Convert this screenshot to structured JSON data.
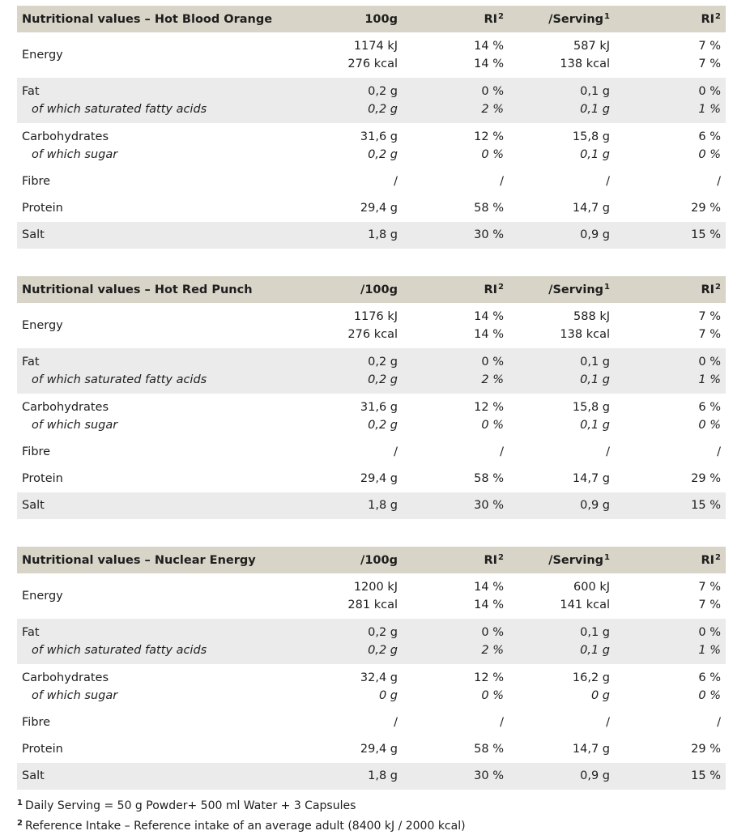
{
  "tables": [
    {
      "header": {
        "title": "Nutritional values – Hot Blood Orange",
        "col_100g": "100g",
        "col_ri": "RI",
        "col_ri_sup": "2",
        "col_serving": "/Serving",
        "col_serving_sup": "1",
        "col_ri2": "RI",
        "col_ri2_sup": "2"
      },
      "energy": {
        "label": "Energy",
        "v1": "1174 kJ",
        "v2": "276 kcal",
        "ri1": "14 %",
        "ri2": "14 %",
        "s1": "587 kJ",
        "s2": "138 kcal",
        "sri1": "7 %",
        "sri2": "7 %"
      },
      "fat": {
        "label": "Fat",
        "sublabel": "of which saturated fatty acids",
        "v1": "0,2 g",
        "v2": "0,2 g",
        "ri1": "0 %",
        "ri2": "2 %",
        "s1": "0,1 g",
        "s2": "0,1 g",
        "sri1": "0 %",
        "sri2": "1 %"
      },
      "carbs": {
        "label": "Carbohydrates",
        "sublabel": "of which sugar",
        "v1": "31,6 g",
        "v2": "0,2 g",
        "ri1": "12 %",
        "ri2": "0 %",
        "s1": "15,8 g",
        "s2": "0,1 g",
        "sri1": "6 %",
        "sri2": "0 %"
      },
      "fibre": {
        "label": "Fibre",
        "v": "/",
        "ri": "/",
        "s": "/",
        "sri": "/"
      },
      "protein": {
        "label": "Protein",
        "v": "29,4 g",
        "ri": "58 %",
        "s": "14,7 g",
        "sri": "29 %"
      },
      "salt": {
        "label": "Salt",
        "v": "1,8 g",
        "ri": "30 %",
        "s": "0,9 g",
        "sri": "15 %"
      }
    },
    {
      "header": {
        "title": "Nutritional values – Hot Red Punch",
        "col_100g": "/100g",
        "col_ri": "RI",
        "col_ri_sup": "2",
        "col_serving": "/Serving",
        "col_serving_sup": "1",
        "col_ri2": "RI",
        "col_ri2_sup": "2"
      },
      "energy": {
        "label": "Energy",
        "v1": "1176 kJ",
        "v2": "276 kcal",
        "ri1": "14 %",
        "ri2": "14 %",
        "s1": "588 kJ",
        "s2": "138 kcal",
        "sri1": "7 %",
        "sri2": "7 %"
      },
      "fat": {
        "label": "Fat",
        "sublabel": "of which saturated fatty acids",
        "v1": "0,2 g",
        "v2": "0,2 g",
        "ri1": "0 %",
        "ri2": "2 %",
        "s1": "0,1 g",
        "s2": "0,1 g",
        "sri1": "0 %",
        "sri2": "1 %"
      },
      "carbs": {
        "label": "Carbohydrates",
        "sublabel": "of which sugar",
        "v1": "31,6 g",
        "v2": "0,2 g",
        "ri1": "12 %",
        "ri2": "0 %",
        "s1": "15,8 g",
        "s2": "0,1 g",
        "sri1": "6 %",
        "sri2": "0 %"
      },
      "fibre": {
        "label": "Fibre",
        "v": "/",
        "ri": "/",
        "s": "/",
        "sri": "/"
      },
      "protein": {
        "label": "Protein",
        "v": "29,4 g",
        "ri": "58 %",
        "s": "14,7 g",
        "sri": "29 %"
      },
      "salt": {
        "label": "Salt",
        "v": "1,8 g",
        "ri": "30 %",
        "s": "0,9 g",
        "sri": "15 %"
      }
    },
    {
      "header": {
        "title": "Nutritional values – Nuclear Energy",
        "col_100g": "/100g",
        "col_ri": "RI",
        "col_ri_sup": "2",
        "col_serving": "/Serving",
        "col_serving_sup": "1",
        "col_ri2": "RI",
        "col_ri2_sup": "2"
      },
      "energy": {
        "label": "Energy",
        "v1": "1200 kJ",
        "v2": "281 kcal",
        "ri1": "14 %",
        "ri2": "14 %",
        "s1": "600 kJ",
        "s2": "141 kcal",
        "sri1": "7 %",
        "sri2": "7 %"
      },
      "fat": {
        "label": "Fat",
        "sublabel": "of which saturated fatty acids",
        "v1": "0,2 g",
        "v2": "0,2 g",
        "ri1": "0 %",
        "ri2": "2 %",
        "s1": "0,1 g",
        "s2": "0,1 g",
        "sri1": "0 %",
        "sri2": "1 %"
      },
      "carbs": {
        "label": "Carbohydrates",
        "sublabel": "of which sugar",
        "v1": "32,4 g",
        "v2": "0 g",
        "ri1": "12 %",
        "ri2": "0 %",
        "s1": "16,2 g",
        "s2": "0 g",
        "sri1": "6 %",
        "sri2": "0 %"
      },
      "fibre": {
        "label": "Fibre",
        "v": "/",
        "ri": "/",
        "s": "/",
        "sri": "/"
      },
      "protein": {
        "label": "Protein",
        "v": "29,4 g",
        "ri": "58 %",
        "s": "14,7 g",
        "sri": "29 %"
      },
      "salt": {
        "label": "Salt",
        "v": "1,8 g",
        "ri": "30 %",
        "s": "0,9 g",
        "sri": "15 %"
      }
    }
  ],
  "footnotes": [
    {
      "mark": "1",
      "text": "Daily Serving = 50 g Powder+ 500 ml Water + 3 Capsules"
    },
    {
      "mark": "2",
      "text": "Reference Intake –  Reference intake of an average adult  (8400 kJ / 2000 kcal)"
    }
  ],
  "colors": {
    "header_bg": "#d8d5c8",
    "row_shade": "#ebebeb",
    "text": "#1e1e1e"
  }
}
